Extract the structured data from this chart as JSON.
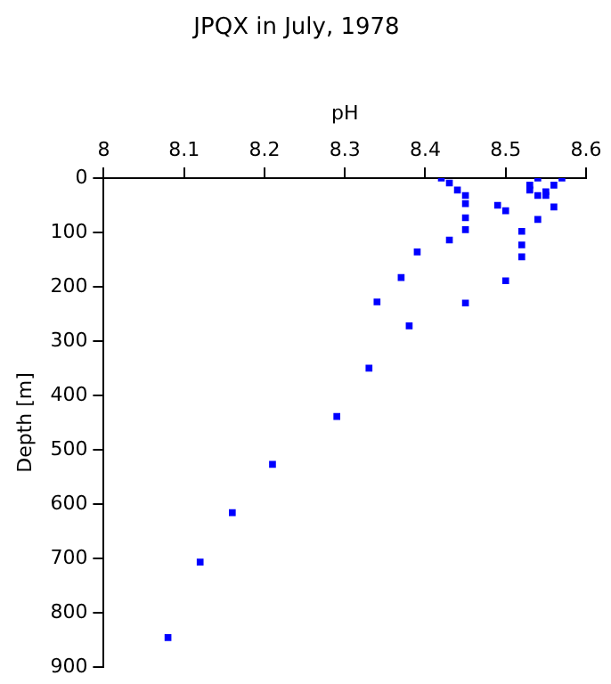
{
  "chart_data": {
    "type": "scatter",
    "title": "JPQX in July, 1978",
    "xlabel": "pH",
    "ylabel": "Depth [m]",
    "x": [
      8.42,
      8.43,
      8.44,
      8.45,
      8.45,
      8.45,
      8.45,
      8.43,
      8.49,
      8.5,
      8.39,
      8.37,
      8.54,
      8.57,
      8.53,
      8.53,
      8.54,
      8.55,
      8.55,
      8.56,
      8.56,
      8.54,
      8.52,
      8.52,
      8.52,
      8.5,
      8.45,
      8.34,
      8.38,
      8.33,
      8.29,
      8.21,
      8.16,
      8.12,
      8.08
    ],
    "values": [
      0,
      9,
      22,
      32,
      47,
      73,
      95,
      114,
      50,
      60,
      136,
      183,
      0,
      0,
      13,
      22,
      32,
      25,
      32,
      13,
      53,
      76,
      98,
      123,
      145,
      189,
      230,
      228,
      272,
      350,
      439,
      527,
      616,
      707,
      846
    ],
    "color": "#0000ff",
    "marker": "square",
    "grid": false,
    "legend": false,
    "xlim": [
      8,
      8.6
    ],
    "xticks": [
      8,
      8.1,
      8.2,
      8.3,
      8.4,
      8.5,
      8.6
    ],
    "ylim": [
      900,
      0
    ],
    "yticks": [
      0,
      100,
      200,
      300,
      400,
      500,
      600,
      700,
      800,
      900
    ]
  }
}
